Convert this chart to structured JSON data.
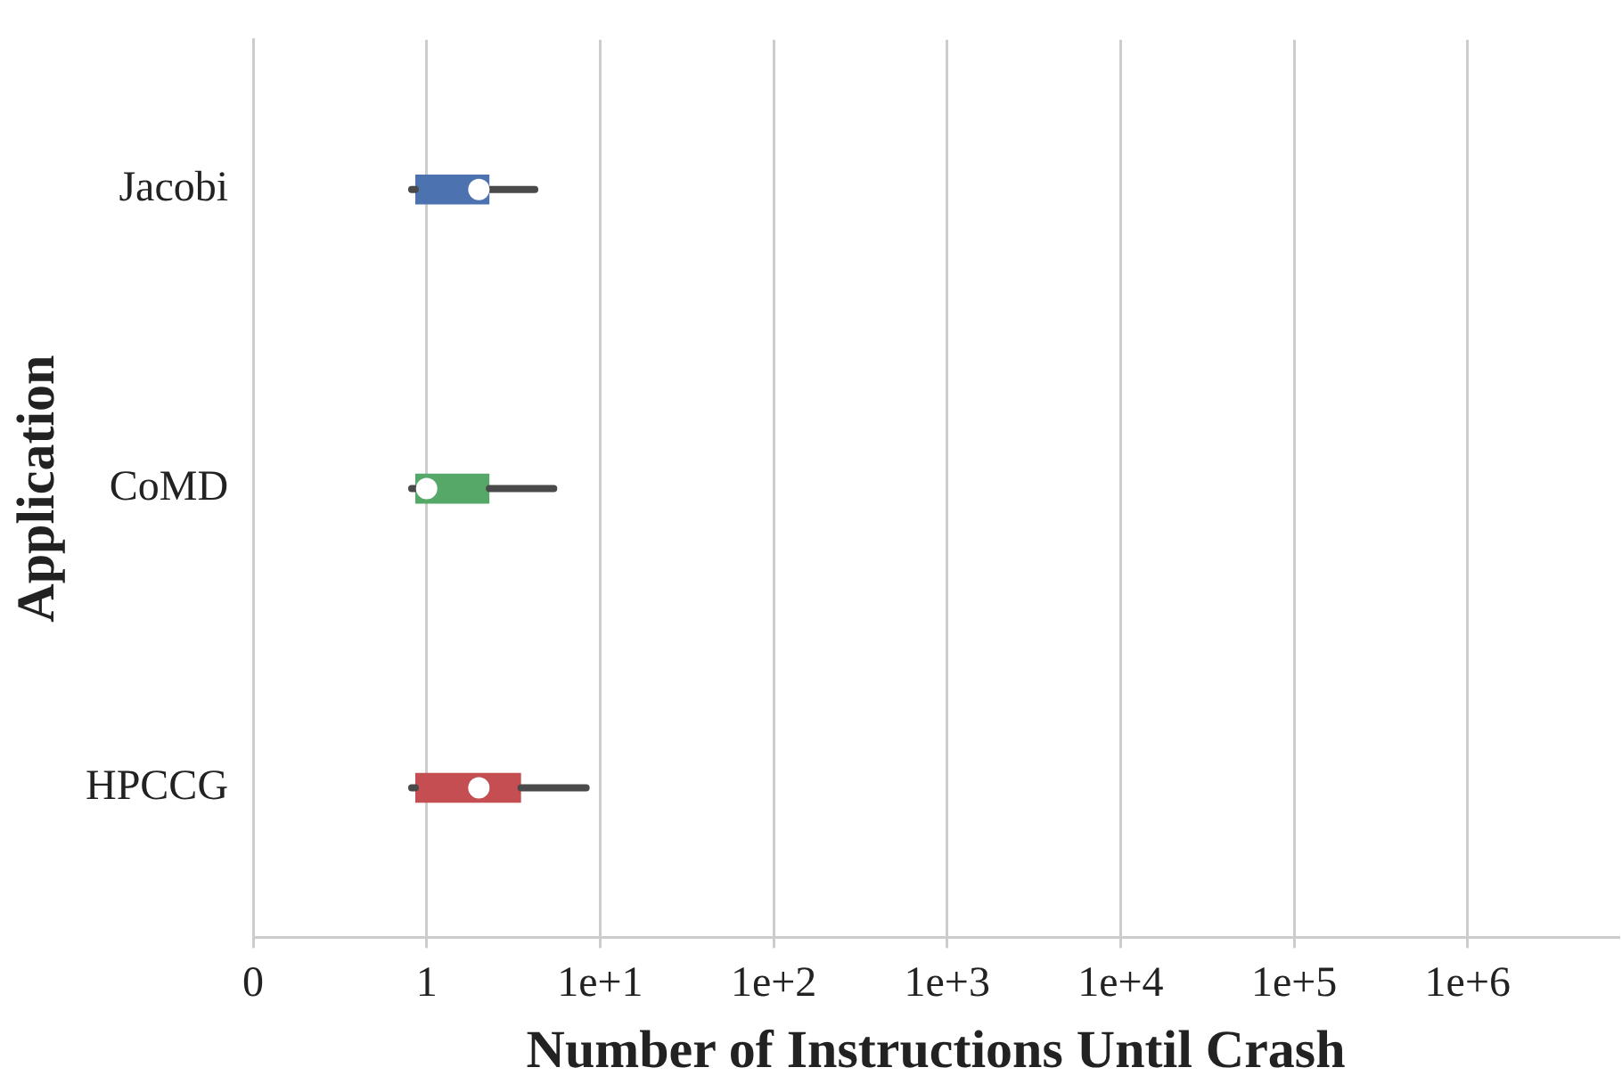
{
  "chart_data": {
    "type": "box",
    "orientation": "horizontal",
    "xlabel": "Number of Instructions Until Crash",
    "ylabel": "Application",
    "categories": [
      "Jacobi",
      "CoMD",
      "HPCCG"
    ],
    "colors": [
      "#4c72b0",
      "#55a868",
      "#c44e52"
    ],
    "boxes": [
      {
        "low": 0.82,
        "q1": 0.86,
        "median": 2.0,
        "q3": 2.3,
        "high": 4.2
      },
      {
        "low": 0.82,
        "q1": 0.86,
        "median": 1.0,
        "q3": 2.3,
        "high": 5.4
      },
      {
        "low": 0.82,
        "q1": 0.86,
        "median": 2.0,
        "q3": 3.5,
        "high": 8.3
      }
    ],
    "log": "x",
    "xlim": [
      0.1,
      7400000
    ],
    "xticks": [
      {
        "value": 0.1,
        "label": "0"
      },
      1,
      {
        "value": 10,
        "label": "1e+1"
      },
      {
        "value": 100,
        "label": "1e+2"
      },
      {
        "value": 1000,
        "label": "1e+3"
      },
      {
        "value": 10000,
        "label": "1e+4"
      },
      {
        "value": 100000,
        "label": "1e+5"
      },
      {
        "value": 1000000,
        "label": "1e+6"
      }
    ],
    "grid": "x"
  }
}
